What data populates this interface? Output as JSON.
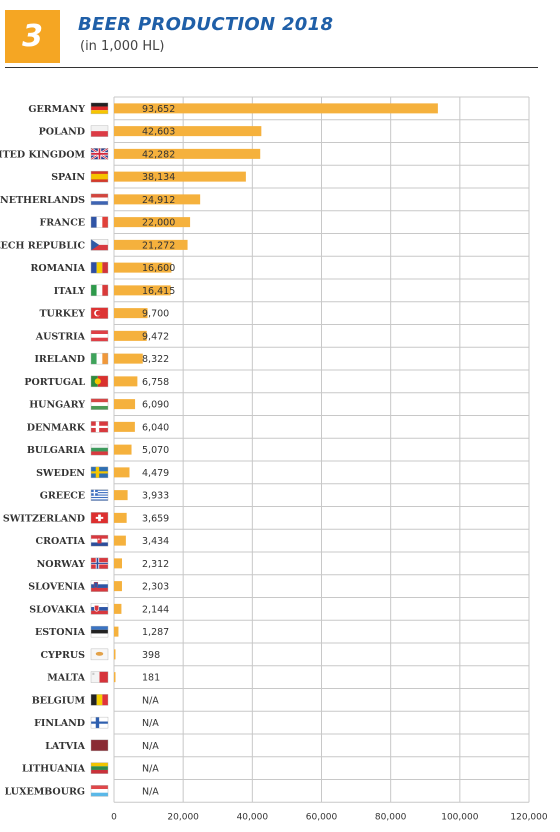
{
  "header": {
    "number": "3",
    "title": "BEER PRODUCTION 2018",
    "subtitle": "(in 1,000 HL)"
  },
  "colors": {
    "bar": "#f5b13d",
    "grid": "#c8c8c8",
    "badge": "#f5a623",
    "title": "#1f5fa8"
  },
  "chart_data": {
    "type": "bar",
    "orientation": "horizontal",
    "title": "BEER PRODUCTION 2018",
    "subtitle": "(in 1,000 HL)",
    "xlabel": "",
    "ylabel": "",
    "xlim": [
      0,
      120000
    ],
    "x_ticks": [
      0,
      20000,
      40000,
      60000,
      80000,
      100000,
      120000
    ],
    "x_tick_labels": [
      "0",
      "20,000",
      "40,000",
      "60,000",
      "80,000",
      "100,000",
      "120,000"
    ],
    "grid": true,
    "legend": "none",
    "categories": [
      "GERMANY",
      "POLAND",
      "UNITED KINGDOM",
      "SPAIN",
      "NETHERLANDS",
      "FRANCE",
      "CZECH REPUBLIC",
      "ROMANIA",
      "ITALY",
      "TURKEY",
      "AUSTRIA",
      "IRELAND",
      "PORTUGAL",
      "HUNGARY",
      "DENMARK",
      "BULGARIA",
      "SWEDEN",
      "GREECE",
      "SWITZERLAND",
      "CROATIA",
      "NORWAY",
      "SLOVENIA",
      "SLOVAKIA",
      "ESTONIA",
      "CYPRUS",
      "MALTA",
      "BELGIUM",
      "FINLAND",
      "LATVIA",
      "LITHUANIA",
      "LUXEMBOURG"
    ],
    "values": [
      93652,
      42603,
      42282,
      38134,
      24912,
      22000,
      21272,
      16600,
      16415,
      9700,
      9472,
      8322,
      6758,
      6090,
      6040,
      5070,
      4479,
      3933,
      3659,
      3434,
      2312,
      2303,
      2144,
      1287,
      398,
      181,
      null,
      null,
      null,
      null,
      null
    ],
    "labels": [
      "93,652",
      "42,603",
      "42,282",
      "38,134",
      "24,912",
      "22,000",
      "21,272",
      "16,600",
      "16,415",
      "9,700",
      "9,472",
      "8,322",
      "6,758",
      "6,090",
      "6,040",
      "5,070",
      "4,479",
      "3,933",
      "3,659",
      "3,434",
      "2,312",
      "2,303",
      "2,144",
      "1,287",
      "398",
      "181",
      "N/A",
      "N/A",
      "N/A",
      "N/A",
      "N/A"
    ],
    "flags": [
      "germany-flag",
      "poland-flag",
      "uk-flag",
      "spain-flag",
      "netherlands-flag",
      "france-flag",
      "czech-republic-flag",
      "romania-flag",
      "italy-flag",
      "turkey-flag",
      "austria-flag",
      "ireland-flag",
      "portugal-flag",
      "hungary-flag",
      "denmark-flag",
      "bulgaria-flag",
      "sweden-flag",
      "greece-flag",
      "switzerland-flag",
      "croatia-flag",
      "norway-flag",
      "slovenia-flag",
      "slovakia-flag",
      "estonia-flag",
      "cyprus-flag",
      "malta-flag",
      "belgium-flag",
      "finland-flag",
      "latvia-flag",
      "lithuania-flag",
      "luxembourg-flag"
    ]
  }
}
